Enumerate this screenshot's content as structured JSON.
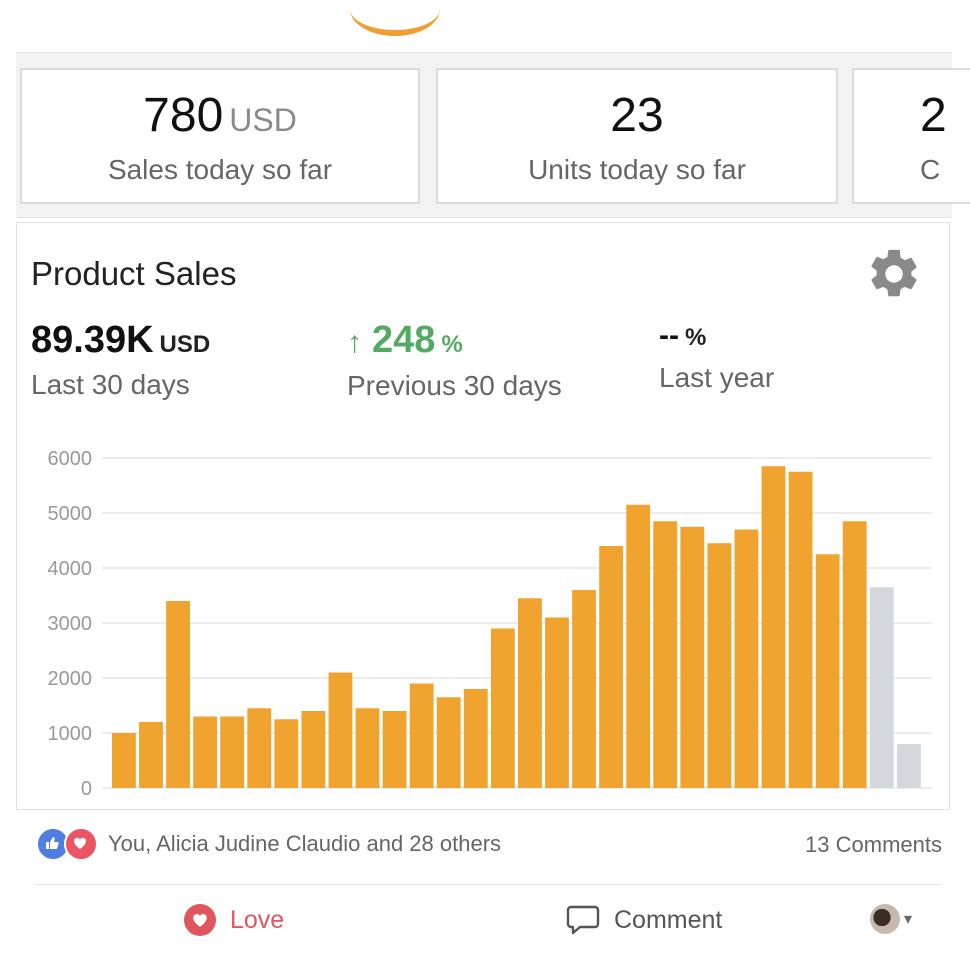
{
  "stats": [
    {
      "value": "780",
      "unit": "USD",
      "caption": "Sales today so far"
    },
    {
      "value": "23",
      "unit": "",
      "caption": "Units today so far"
    },
    {
      "value": "2",
      "unit": "",
      "caption": "C"
    }
  ],
  "panel": {
    "title": "Product Sales",
    "settings_icon": "gear-icon",
    "metrics": [
      {
        "value": "89.39K",
        "unit": "USD",
        "label": "Last 30 days"
      },
      {
        "arrow": "↑",
        "value": "248",
        "unit": "%",
        "label": "Previous 30 days"
      },
      {
        "value": "--",
        "unit": "%",
        "label": "Last year"
      }
    ]
  },
  "chart_data": {
    "type": "bar",
    "title": "",
    "xlabel": "",
    "ylabel": "",
    "ylim": [
      0,
      6000
    ],
    "yticks": [
      0,
      1000,
      2000,
      3000,
      4000,
      5000,
      6000
    ],
    "grid": true,
    "values": [
      1000,
      1200,
      3400,
      1300,
      1300,
      1450,
      1250,
      1400,
      2100,
      1450,
      1400,
      1900,
      1650,
      1800,
      2900,
      3450,
      3100,
      3600,
      4400,
      5150,
      4850,
      4750,
      4450,
      4700,
      5850,
      5750,
      4250,
      4850,
      3650,
      800
    ],
    "colors": {
      "past": "#f0a42f",
      "projected": "#d4d7db"
    },
    "projected_from_index": 28
  },
  "social": {
    "reactions_text": "You, Alicia Judine Claudio and 28 others",
    "comments": "13 Comments",
    "love_label": "Love",
    "comment_label": "Comment",
    "caret": "▾"
  },
  "colors": {
    "accent": "#f0a42f",
    "positive": "#55aa62",
    "love": "#e0565f",
    "like": "#4f7de2"
  }
}
